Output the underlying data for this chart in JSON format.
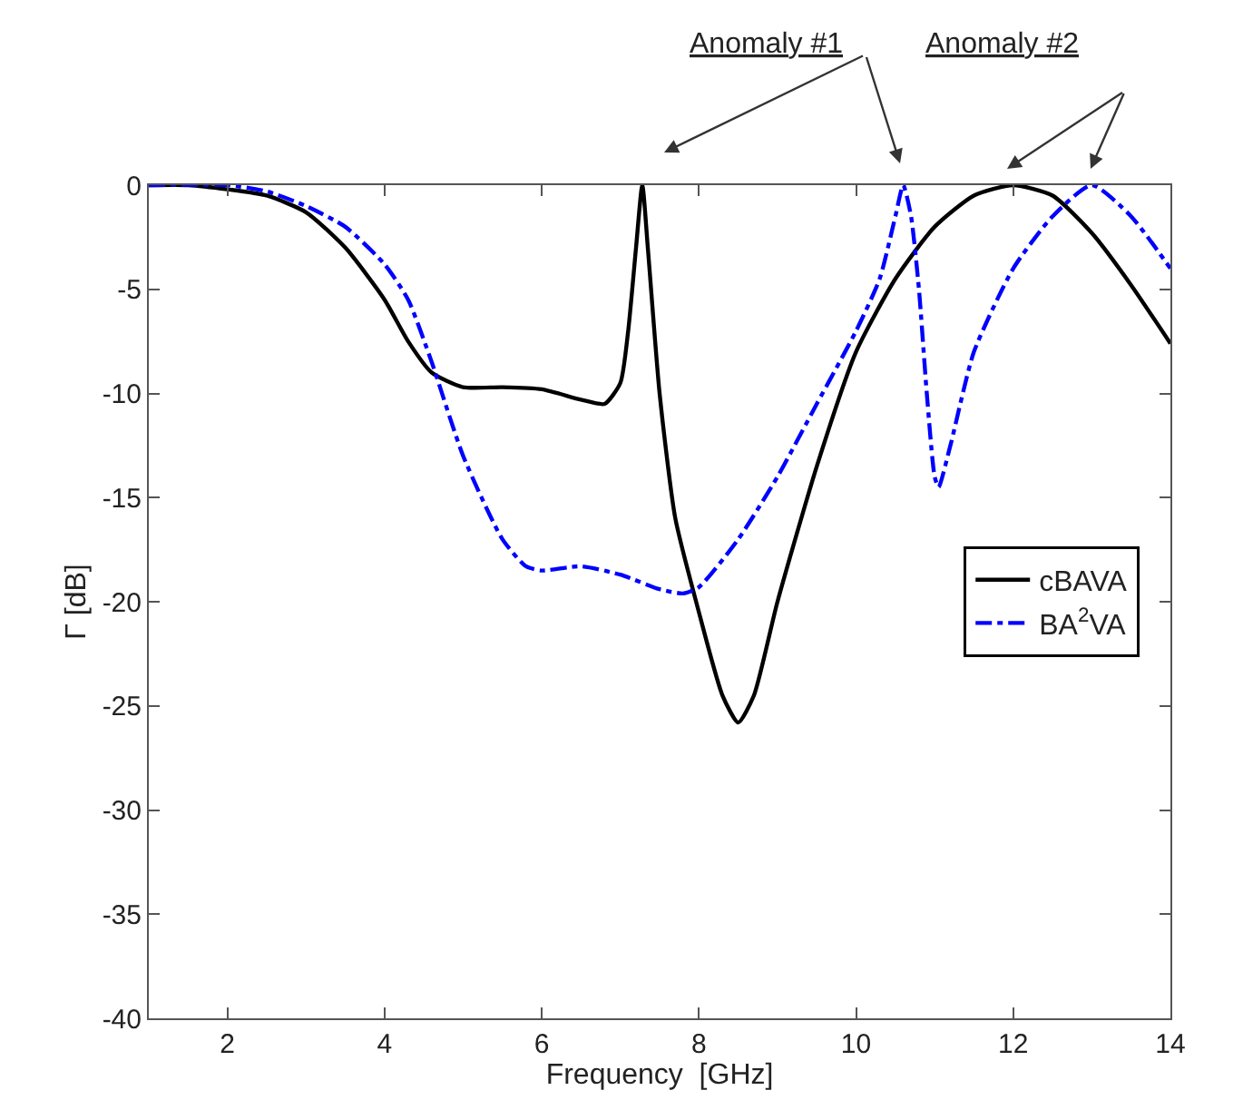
{
  "chart_data": {
    "type": "line",
    "xlabel": "Frequency  [GHz]",
    "ylabel": "Γ [dB]",
    "xlim": [
      1,
      14
    ],
    "xticks": [
      2,
      4,
      6,
      8,
      10,
      12,
      14
    ],
    "ylim": [
      -40,
      0
    ],
    "yticks": [
      -40,
      -35,
      -30,
      -25,
      -20,
      -15,
      -10,
      -5,
      0
    ],
    "legend": "right",
    "marker": "none",
    "annotations": [
      "Anomaly #1",
      "Anomaly #2"
    ],
    "series": [
      {
        "name": "cBAVA",
        "color": "#000000",
        "line_style": "solid",
        "x": [
          1,
          1.5,
          2,
          2.5,
          3,
          3.5,
          4,
          4.3,
          4.6,
          5,
          5.5,
          6,
          6.5,
          6.8,
          7.0,
          7.1,
          7.2,
          7.28,
          7.35,
          7.5,
          7.7,
          8,
          8.3,
          8.5,
          8.7,
          9,
          9.5,
          10,
          10.5,
          11,
          11.5,
          12,
          12.5,
          13,
          13.5,
          14
        ],
        "values": [
          0,
          0,
          -0.2,
          -0.5,
          -1.3,
          -3,
          -5.5,
          -7.5,
          -9,
          -9.7,
          -9.7,
          -9.8,
          -10.3,
          -10.5,
          -9.5,
          -7,
          -3,
          0,
          -3,
          -10,
          -16,
          -20.5,
          -24.5,
          -25.8,
          -24.5,
          -20,
          -13.5,
          -8,
          -4.5,
          -2,
          -0.5,
          0,
          -0.5,
          -2.3,
          -4.8,
          -7.6
        ]
      },
      {
        "name": "BA$^{2}$VA",
        "color": "#0000ff",
        "line_style": "dashdot",
        "x": [
          1,
          2,
          2.5,
          3,
          3.5,
          4,
          4.3,
          4.6,
          5,
          5.5,
          5.8,
          6,
          6.5,
          7,
          7.5,
          7.8,
          8,
          8.5,
          9,
          9.5,
          10,
          10.3,
          10.5,
          10.6,
          10.7,
          10.8,
          10.9,
          11.0,
          11.05,
          11.2,
          11.5,
          12,
          12.5,
          13,
          13.5,
          14
        ],
        "values": [
          0,
          0,
          -0.3,
          -1.0,
          -2,
          -3.8,
          -5.5,
          -8.5,
          -13,
          -17,
          -18.3,
          -18.5,
          -18.3,
          -18.7,
          -19.4,
          -19.6,
          -19.3,
          -17,
          -14,
          -10.5,
          -7,
          -4.5,
          -1.5,
          0,
          -1.5,
          -5,
          -10,
          -14,
          -14.5,
          -12.5,
          -8,
          -4,
          -1.5,
          0,
          -1.5,
          -4
        ]
      }
    ]
  }
}
